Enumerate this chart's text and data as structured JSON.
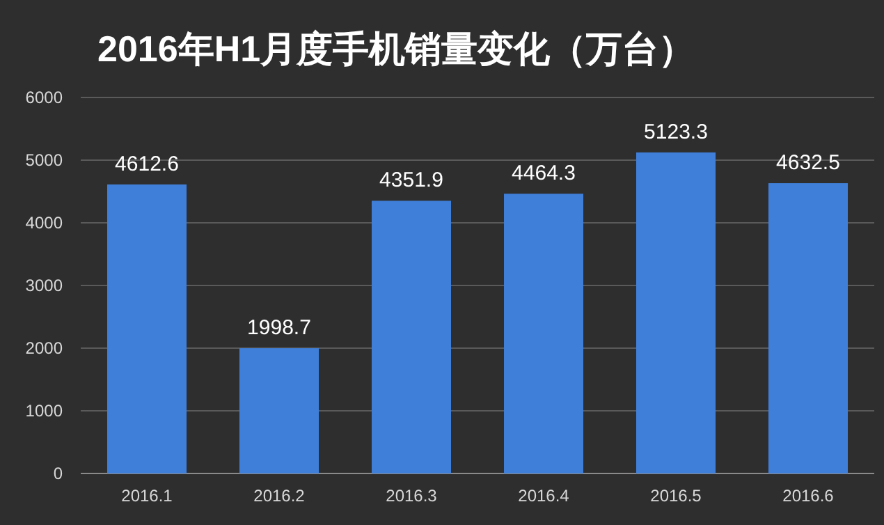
{
  "chart_data": {
    "type": "bar",
    "title": "2016年H1月度手机销量变化（万台）",
    "categories": [
      "2016.1",
      "2016.2",
      "2016.3",
      "2016.4",
      "2016.5",
      "2016.6"
    ],
    "values": [
      4612.6,
      1998.7,
      4351.9,
      4464.3,
      5123.3,
      4632.5
    ],
    "color": "#3f7fd9",
    "ylim": [
      0,
      6000
    ],
    "yticks": [
      0,
      1000,
      2000,
      3000,
      4000,
      5000,
      6000
    ],
    "grid": "y",
    "data_labels": true
  }
}
